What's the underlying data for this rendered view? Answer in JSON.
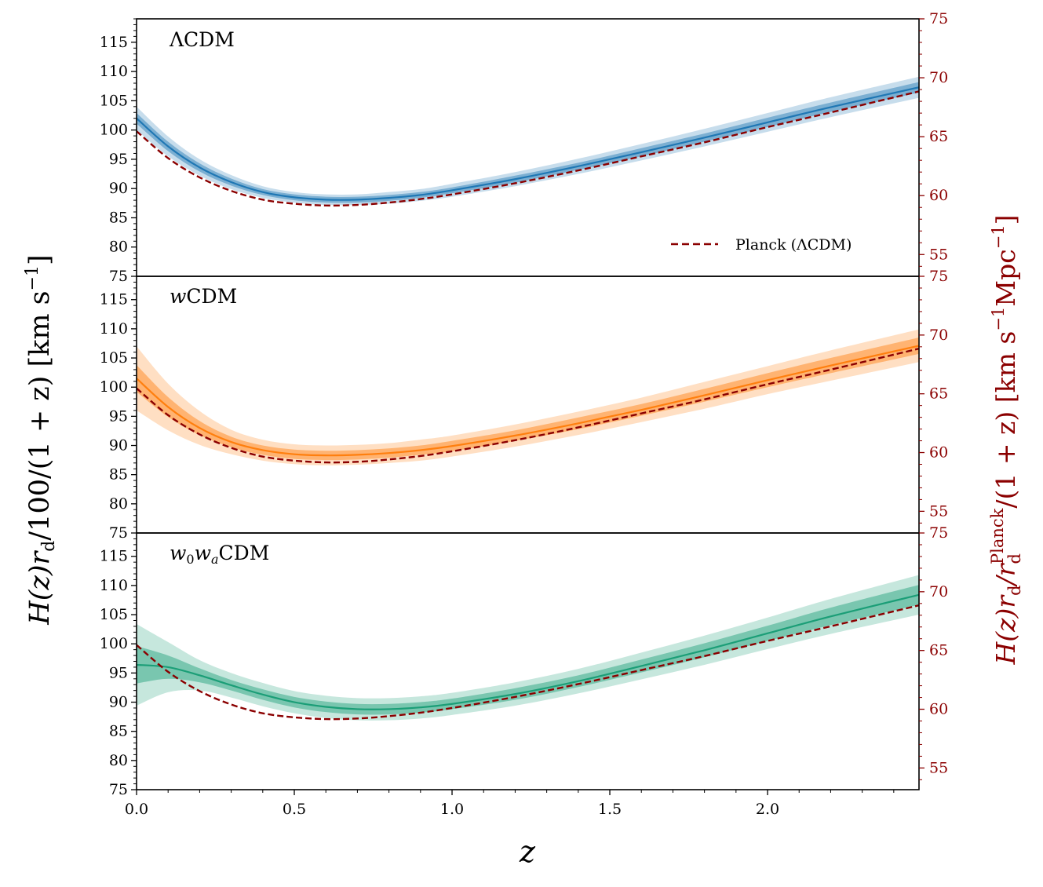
{
  "chart_data": {
    "type": "line",
    "x_axis": {
      "label": "z",
      "xlim": [
        0.0,
        2.48
      ],
      "ticks": [
        0.0,
        0.5,
        1.0,
        1.5,
        2.0
      ],
      "tick_labels": [
        "0.0",
        "0.5",
        "1.0",
        "1.5",
        "2.0"
      ]
    },
    "y_axis_left": {
      "label": "H(z)r_d/100/(1 + z) [km s^-1]",
      "label_text": "H(z)r",
      "label_sub": "d",
      "label_rest": "/100/(1 + z) [km s",
      "label_sup": "−1",
      "label_end": "]",
      "ylim": [
        75,
        119
      ],
      "ticks": [
        75,
        80,
        85,
        90,
        95,
        100,
        105,
        110,
        115
      ],
      "tick_labels": [
        "75",
        "80",
        "85",
        "90",
        "95",
        "100",
        "105",
        "110",
        "115"
      ]
    },
    "y_axis_right": {
      "label": "H(z)r_d/r_d^Planck/(1 + z) [km s^-1 Mpc^-1]",
      "label_text": "H(z)r",
      "label_sub": "d",
      "label_mid": "/r",
      "label_sub2": "d",
      "label_sup2": "Planck",
      "label_rest": "/(1 + z) [km s",
      "label_sup": "−1",
      "label_end": "Mpc",
      "label_sup3": "−1",
      "label_close": "]",
      "color": "#8b0000",
      "ticks": [
        55,
        60,
        65,
        70,
        75
      ],
      "tick_labels": [
        "55",
        "60",
        "65",
        "70",
        "75"
      ]
    },
    "legend": {
      "label": "Planck (ΛCDM)",
      "placement": "lower-right of top panel",
      "color": "#8b0000",
      "style": "dashed"
    },
    "x": [
      0.0,
      0.1,
      0.2,
      0.3,
      0.4,
      0.5,
      0.6,
      0.7,
      0.8,
      0.9,
      1.0,
      1.2,
      1.4,
      1.6,
      1.8,
      2.0,
      2.2,
      2.48
    ],
    "planck": [
      99.8,
      95.2,
      91.9,
      89.6,
      88.1,
      87.4,
      87.1,
      87.2,
      87.6,
      88.2,
      89.0,
      90.9,
      93.1,
      95.5,
      97.9,
      100.5,
      103.0,
      106.6
    ],
    "panels": [
      {
        "label": "ΛCDM",
        "color": "#1f77b4",
        "median": [
          102.0,
          97.2,
          93.6,
          91.1,
          89.4,
          88.5,
          88.1,
          88.1,
          88.4,
          88.9,
          89.7,
          91.6,
          93.8,
          96.2,
          98.7,
          101.3,
          103.9,
          107.3
        ],
        "sigma1": [
          0.9,
          0.8,
          0.7,
          0.6,
          0.5,
          0.5,
          0.5,
          0.5,
          0.5,
          0.5,
          0.5,
          0.6,
          0.6,
          0.7,
          0.7,
          0.8,
          0.8,
          0.9
        ],
        "sigma2": [
          2.0,
          1.7,
          1.4,
          1.2,
          1.0,
          0.9,
          0.9,
          0.9,
          1.0,
          1.0,
          1.1,
          1.2,
          1.3,
          1.4,
          1.5,
          1.6,
          1.7,
          1.8
        ]
      },
      {
        "label_main": "w",
        "label_rest": "CDM",
        "color": "#ff7f0e",
        "median": [
          101.5,
          96.6,
          93.0,
          90.6,
          89.2,
          88.5,
          88.3,
          88.4,
          88.7,
          89.2,
          89.9,
          91.7,
          93.8,
          96.1,
          98.6,
          101.2,
          103.7,
          107.1
        ],
        "sigma1": [
          2.3,
          1.7,
          1.2,
          0.9,
          0.8,
          0.8,
          0.8,
          0.8,
          0.8,
          0.8,
          0.9,
          0.9,
          1.0,
          1.0,
          1.1,
          1.2,
          1.3,
          1.4
        ],
        "sigma2": [
          5.5,
          4.0,
          2.9,
          2.1,
          1.8,
          1.7,
          1.7,
          1.7,
          1.7,
          1.8,
          1.8,
          1.9,
          2.0,
          2.1,
          2.3,
          2.4,
          2.6,
          2.8
        ]
      },
      {
        "label_main": "w",
        "label_sub0": "0",
        "label_mid": "w",
        "label_sub1": "a",
        "label_rest": "CDM",
        "color": "#1b9e77",
        "median": [
          96.4,
          96.0,
          94.6,
          92.9,
          91.3,
          90.0,
          89.2,
          88.8,
          88.8,
          89.1,
          89.7,
          91.4,
          93.6,
          96.2,
          98.9,
          101.8,
          104.7,
          108.4
        ],
        "sigma1": [
          3.2,
          2.0,
          1.2,
          0.9,
          0.9,
          0.9,
          0.9,
          0.9,
          0.9,
          0.9,
          0.9,
          1.0,
          1.0,
          1.1,
          1.2,
          1.3,
          1.5,
          1.7
        ],
        "sigma2": [
          7.0,
          4.3,
          2.6,
          2.1,
          2.0,
          1.9,
          1.9,
          1.9,
          1.9,
          1.9,
          1.9,
          2.0,
          2.1,
          2.3,
          2.5,
          2.7,
          3.0,
          3.4
        ]
      }
    ]
  }
}
